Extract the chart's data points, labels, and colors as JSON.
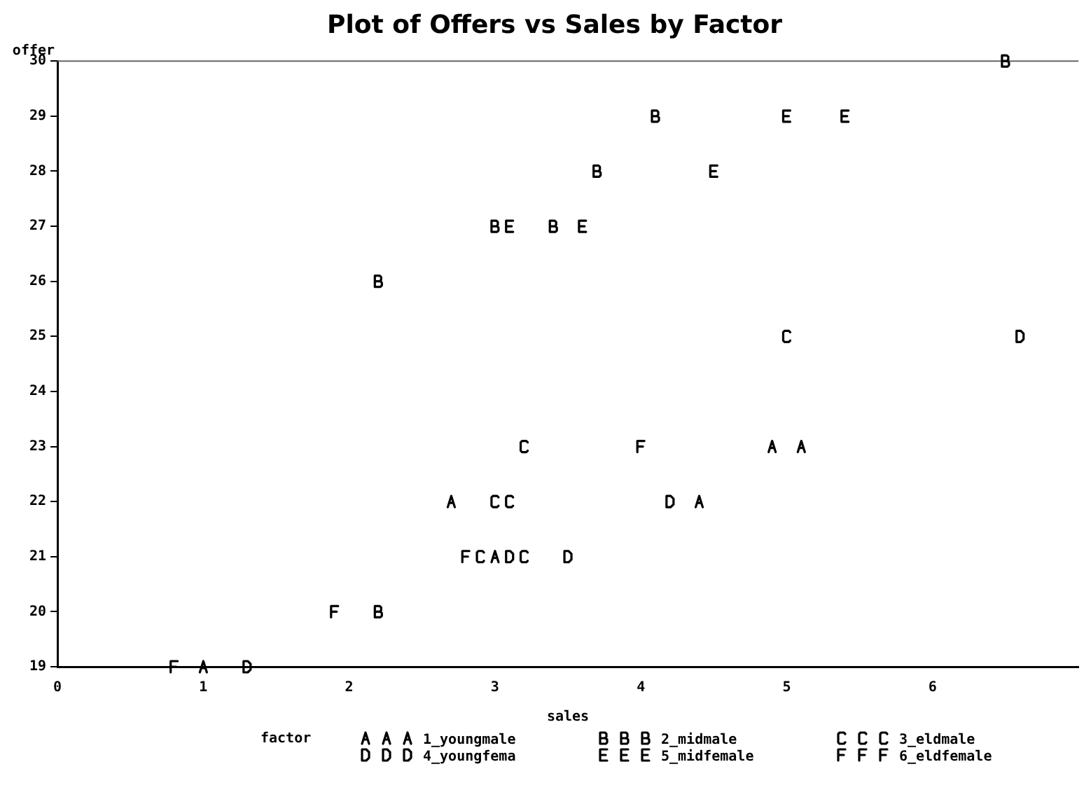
{
  "chart_data": {
    "type": "scatter",
    "title": "Plot of Offers vs Sales by Factor",
    "xlabel": "sales",
    "ylabel": "offer",
    "legend_title": "factor",
    "legend": "bottom",
    "grid": false,
    "xlim": [
      0,
      7
    ],
    "xticks": [
      0,
      1,
      2,
      3,
      4,
      5,
      6
    ],
    "ylim": [
      19,
      30
    ],
    "yticks": [
      19,
      20,
      21,
      22,
      23,
      24,
      25,
      26,
      27,
      28,
      29,
      30
    ],
    "series": [
      {
        "name": "1_youngmale",
        "color": "#000000",
        "x": [
          1,
          2.7,
          3.0,
          4.4,
          4.9,
          5.1
        ],
        "values": [
          19,
          22,
          21,
          22,
          23,
          23
        ]
      },
      {
        "name": "2_midmale",
        "color": "#000000",
        "x": [
          2.2,
          2.2,
          3.0,
          3.4,
          3.7,
          4.1,
          6.5
        ],
        "values": [
          20,
          26,
          27,
          27,
          28,
          29,
          30
        ]
      },
      {
        "name": "3_eldmale",
        "color": "#000000",
        "x": [
          2.9,
          3.0,
          3.1,
          3.2,
          3.2,
          5.0
        ],
        "values": [
          21,
          22,
          22,
          21,
          23,
          25
        ]
      },
      {
        "name": "4_youngfema",
        "color": "#000000",
        "x": [
          1.3,
          3.1,
          3.5,
          4.2,
          6.6
        ],
        "values": [
          19,
          21,
          21,
          22,
          25
        ]
      },
      {
        "name": "5_midfemale",
        "color": "#000000",
        "x": [
          3.1,
          3.6,
          4.5,
          5.0,
          5.4
        ],
        "values": [
          27,
          27,
          28,
          29,
          29
        ]
      },
      {
        "name": "6_eldfemale",
        "color": "#000000",
        "x": [
          0.8,
          1.9,
          2.8,
          4.0
        ],
        "values": [
          19,
          20,
          21,
          23
        ]
      }
    ]
  }
}
